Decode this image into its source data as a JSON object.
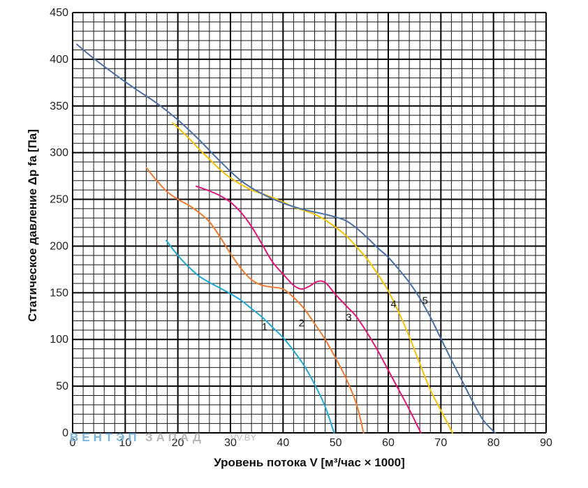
{
  "chart_data": {
    "type": "line",
    "xlabel": "Уровень потока V [м³/час × 1000]",
    "ylabel": "Статическое давление Δp fa [Па]",
    "xlim": [
      0,
      90
    ],
    "ylim": [
      0,
      450
    ],
    "x_ticks": [
      0,
      10,
      20,
      30,
      40,
      50,
      60,
      70,
      80,
      90
    ],
    "y_ticks": [
      0,
      50,
      100,
      150,
      200,
      250,
      300,
      350,
      400,
      450
    ],
    "grid": true,
    "minor_grid_step": 2,
    "series": [
      {
        "name": "1",
        "color": "#1ea8d6",
        "label_at": [
          36.5,
          110
        ],
        "points": [
          [
            17.8,
            206
          ],
          [
            20,
            190
          ],
          [
            22,
            178
          ],
          [
            24,
            168
          ],
          [
            26,
            161
          ],
          [
            28,
            155
          ],
          [
            30,
            149
          ],
          [
            32,
            142
          ],
          [
            34,
            133
          ],
          [
            36,
            124
          ],
          [
            38,
            113
          ],
          [
            40,
            102
          ],
          [
            42,
            88
          ],
          [
            44,
            72
          ],
          [
            46,
            52
          ],
          [
            48,
            28
          ],
          [
            49.7,
            0
          ]
        ]
      },
      {
        "name": "2",
        "color": "#ef7a2e",
        "label_at": [
          43.5,
          114
        ],
        "points": [
          [
            14,
            284
          ],
          [
            16,
            270
          ],
          [
            18,
            258
          ],
          [
            20,
            250
          ],
          [
            22,
            244
          ],
          [
            24,
            236
          ],
          [
            26,
            226
          ],
          [
            28,
            210
          ],
          [
            30,
            192
          ],
          [
            32,
            176
          ],
          [
            34,
            164
          ],
          [
            36,
            158
          ],
          [
            38,
            156
          ],
          [
            40,
            154
          ],
          [
            42,
            145
          ],
          [
            44,
            133
          ],
          [
            46,
            117
          ],
          [
            48,
            100
          ],
          [
            50,
            80
          ],
          [
            52,
            58
          ],
          [
            54,
            30
          ],
          [
            55.3,
            0
          ]
        ]
      },
      {
        "name": "3",
        "color": "#e0157a",
        "label_at": [
          52.5,
          120
        ],
        "points": [
          [
            23.5,
            264
          ],
          [
            26,
            259
          ],
          [
            28,
            254
          ],
          [
            30,
            247
          ],
          [
            32,
            236
          ],
          [
            34,
            221
          ],
          [
            36,
            202
          ],
          [
            38,
            183
          ],
          [
            40,
            170
          ],
          [
            42,
            158
          ],
          [
            43.5,
            154
          ],
          [
            45,
            157
          ],
          [
            46.5,
            162
          ],
          [
            48,
            161
          ],
          [
            50,
            148
          ],
          [
            52,
            136
          ],
          [
            54,
            124
          ],
          [
            56,
            107
          ],
          [
            58,
            88
          ],
          [
            60,
            67
          ],
          [
            62,
            46
          ],
          [
            64,
            25
          ],
          [
            66.2,
            0
          ]
        ]
      },
      {
        "name": "4",
        "color": "#f7c200",
        "label_at": [
          61,
          134
        ],
        "points": [
          [
            19,
            332
          ],
          [
            22,
            316
          ],
          [
            24,
            304
          ],
          [
            26,
            293
          ],
          [
            28,
            282
          ],
          [
            30,
            273
          ],
          [
            32,
            266
          ],
          [
            34,
            260
          ],
          [
            36,
            256
          ],
          [
            38,
            252
          ],
          [
            40,
            247
          ],
          [
            42,
            242
          ],
          [
            44,
            238
          ],
          [
            46,
            234
          ],
          [
            48,
            228
          ],
          [
            50,
            220
          ],
          [
            52,
            211
          ],
          [
            54,
            199
          ],
          [
            56,
            186
          ],
          [
            58,
            170
          ],
          [
            60,
            152
          ],
          [
            62,
            129
          ],
          [
            64,
            103
          ],
          [
            66,
            74
          ],
          [
            68,
            46
          ],
          [
            70,
            24
          ],
          [
            72.2,
            0
          ]
        ]
      },
      {
        "name": "5",
        "color": "#4a6fa8",
        "label_at": [
          67,
          138
        ],
        "points": [
          [
            0.8,
            416
          ],
          [
            4,
            401
          ],
          [
            8,
            384
          ],
          [
            12,
            368
          ],
          [
            16,
            353
          ],
          [
            20,
            335
          ],
          [
            24,
            314
          ],
          [
            28,
            291
          ],
          [
            32,
            270
          ],
          [
            36,
            256
          ],
          [
            40,
            246
          ],
          [
            44,
            239
          ],
          [
            48,
            234
          ],
          [
            50,
            231
          ],
          [
            52,
            227
          ],
          [
            54,
            219
          ],
          [
            56,
            209
          ],
          [
            58,
            198
          ],
          [
            60,
            188
          ],
          [
            62,
            175
          ],
          [
            64,
            161
          ],
          [
            66,
            144
          ],
          [
            68,
            124
          ],
          [
            70,
            101
          ],
          [
            72,
            78
          ],
          [
            74,
            56
          ],
          [
            76,
            34
          ],
          [
            78,
            14
          ],
          [
            80.3,
            0
          ]
        ]
      }
    ]
  },
  "watermark": {
    "brand_left": "ВЕНТЭП",
    "brand_right": "ЗАПАД",
    "site": "VV.BY"
  }
}
